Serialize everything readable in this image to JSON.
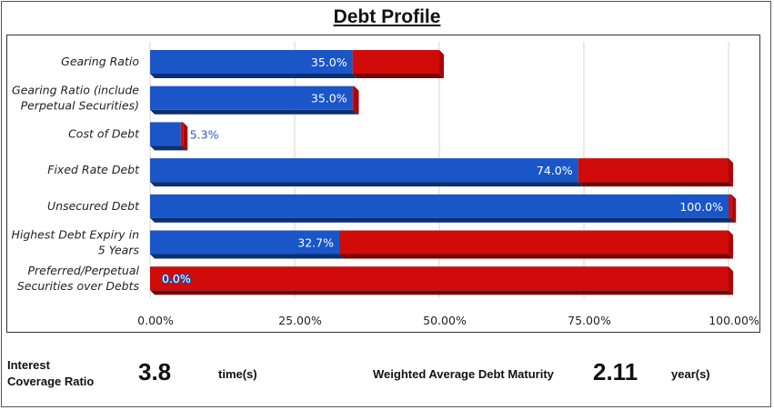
{
  "title": "Debt Profile",
  "chart_data": {
    "type": "bar",
    "orientation": "horizontal",
    "stacked": true,
    "categories": [
      [
        "Gearing Ratio"
      ],
      [
        "Gearing Ratio (include",
        "Perpetual Securities)"
      ],
      [
        "Cost of Debt"
      ],
      [
        "Fixed Rate Debt"
      ],
      [
        "Unsecured Debt"
      ],
      [
        "Highest Debt Expiry in",
        "5 Years"
      ],
      [
        "Preferred/Perpetual",
        "Securities over Debts"
      ]
    ],
    "series": [
      {
        "values": [
          35.0,
          35.0,
          5.3,
          74.0,
          100.0,
          32.7,
          0.0
        ],
        "color": "#1a56c8"
      },
      {
        "values": [
          15.0,
          0.3,
          0.4,
          26.0,
          0.5,
          67.3,
          100.0
        ],
        "color": "#d10a0a"
      }
    ],
    "data_labels": [
      "35.0%",
      "35.0%",
      "5.3%",
      "74.0%",
      "100.0%",
      "32.7%",
      "0.0%"
    ],
    "xlim": [
      0,
      100
    ],
    "xticks": [
      "0.00%",
      "25.00%",
      "50.00%",
      "75.00%",
      "100.00%"
    ],
    "grid": true
  },
  "stats": {
    "interest_coverage_label_line1": "Interest",
    "interest_coverage_label_line2": "Coverage Ratio",
    "interest_coverage_value": "3.8",
    "interest_coverage_unit": "time(s)",
    "wadm_label": "Weighted Average Debt Maturity",
    "wadm_value": "2.11",
    "wadm_unit": "year(s)"
  }
}
